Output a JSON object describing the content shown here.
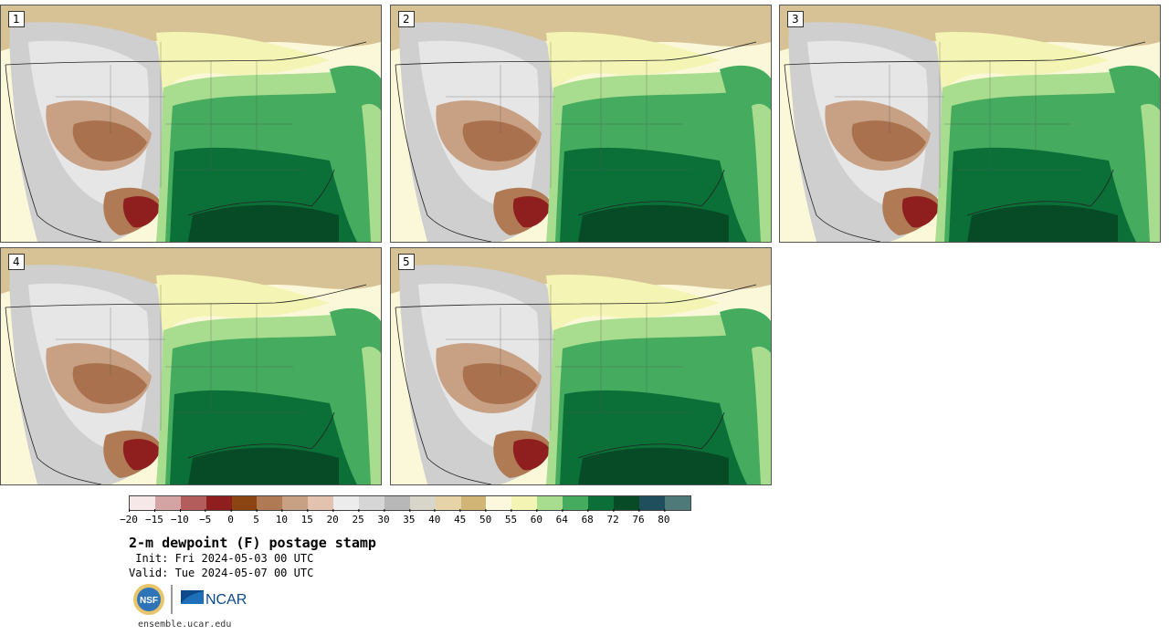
{
  "stamps": [
    {
      "label": "1"
    },
    {
      "label": "2"
    },
    {
      "label": "3"
    },
    {
      "label": "4"
    },
    {
      "label": "5"
    }
  ],
  "colorbar": {
    "colors": [
      "#f6e8e8",
      "#d4a3a3",
      "#b35d5d",
      "#8f1e1e",
      "#8b4513",
      "#b07a55",
      "#c8a083",
      "#e3c3b0",
      "#ececec",
      "#d6d6d6",
      "#b8b8b8",
      "#d8d5cb",
      "#e6d3a8",
      "#d1b577",
      "#fbf8de",
      "#f4f5b4",
      "#a8dd90",
      "#45ab5e",
      "#0b7038",
      "#064a26",
      "#1f4f5d",
      "#4f7a7a"
    ],
    "tick_labels": [
      "−20",
      "−15",
      "−10",
      "−5",
      "0",
      "5",
      "10",
      "15",
      "20",
      "25",
      "30",
      "35",
      "40",
      "45",
      "50",
      "55",
      "60",
      "64",
      "68",
      "72",
      "76",
      "80"
    ]
  },
  "title": "2-m dewpoint (F) postage stamp",
  "init_text": " Init: Fri 2024-05-03 00 UTC",
  "valid_text": "Valid: Tue 2024-05-07 00 UTC",
  "logos": {
    "nsf": "NSF",
    "ncar": "NCAR"
  },
  "site": "ensemble.ucar.edu"
}
